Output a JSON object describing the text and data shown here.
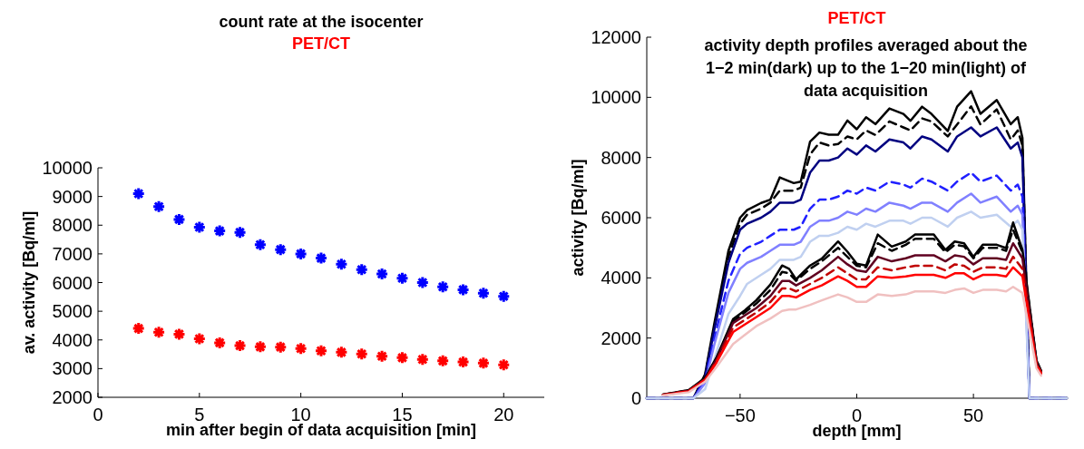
{
  "chart_data": [
    {
      "type": "scatter",
      "title": "count rate at the isocenter",
      "xlabel": "min after begin of data acquisition [min]",
      "ylabel": "av. activity [Bq/ml]",
      "x": [
        2,
        3,
        4,
        5,
        6,
        7,
        8,
        9,
        10,
        11,
        12,
        13,
        14,
        15,
        16,
        17,
        18,
        19,
        20
      ],
      "xlim": [
        0,
        22
      ],
      "xticks": [
        0,
        5,
        10,
        15,
        20
      ],
      "ylim": [
        2000,
        10000
      ],
      "yticks": [
        2000,
        3000,
        4000,
        5000,
        6000,
        7000,
        8000,
        9000,
        10000
      ],
      "marker": "cross",
      "legend": "top",
      "series": [
        {
          "color": "#0000ff",
          "values": [
            9100,
            8650,
            8200,
            7930,
            7800,
            7750,
            7320,
            7150,
            7000,
            6850,
            6640,
            6450,
            6300,
            6150,
            6000,
            5850,
            5750,
            5630,
            5520
          ]
        },
        {
          "name": "PET/CT",
          "color": "#ff0000",
          "values": [
            4400,
            4270,
            4200,
            4040,
            3900,
            3800,
            3760,
            3750,
            3700,
            3620,
            3570,
            3510,
            3430,
            3380,
            3320,
            3270,
            3230,
            3190,
            3130
          ]
        }
      ]
    },
    {
      "type": "line",
      "title": "activity depth profiles averaged about the 1−2 min(dark) up to the 1−20 min(light) of data acquisition",
      "xlabel": "depth [mm]",
      "ylabel": "activity [Bq/ml]",
      "xlim": [
        -90,
        90
      ],
      "xticks": [
        -50,
        0,
        50
      ],
      "ylim": [
        0,
        12000
      ],
      "yticks": [
        0,
        2000,
        4000,
        6000,
        8000,
        10000,
        12000
      ],
      "legend": "top",
      "series": [
        {
          "color": "#000000",
          "line_style": "solid",
          "x": [
            -90,
            -70,
            -65,
            -61,
            -55,
            -50,
            -47,
            -41,
            -37,
            -33,
            -27,
            -24,
            -20,
            -16,
            -12,
            -8,
            -4,
            0,
            4,
            8,
            14,
            20,
            23,
            28,
            32,
            39,
            43,
            49,
            53,
            60,
            66,
            69,
            71,
            74,
            90
          ],
          "values": [
            0,
            0,
            800,
            2500,
            4900,
            6000,
            6250,
            6490,
            6600,
            7340,
            7150,
            7200,
            8530,
            8830,
            8760,
            8760,
            9230,
            8940,
            9340,
            9110,
            9630,
            9450,
            9220,
            9690,
            9450,
            8880,
            9690,
            10200,
            9450,
            9910,
            9110,
            9340,
            8650,
            0,
            0
          ]
        },
        {
          "color": "#000000",
          "line_style": "dashed",
          "x": [
            -90,
            -70,
            -65,
            -61,
            -55,
            -50,
            -47,
            -41,
            -37,
            -33,
            -27,
            -24,
            -20,
            -16,
            -12,
            -8,
            -4,
            0,
            4,
            8,
            14,
            20,
            23,
            28,
            32,
            39,
            43,
            49,
            53,
            60,
            66,
            69,
            71,
            74,
            90
          ],
          "values": [
            0,
            0,
            750,
            2400,
            4700,
            5800,
            6100,
            6300,
            6500,
            6900,
            6900,
            7000,
            8100,
            8500,
            8400,
            8450,
            8700,
            8600,
            8900,
            8750,
            9200,
            9000,
            8900,
            9300,
            9200,
            8700,
            9100,
            9700,
            9100,
            9600,
            8600,
            8900,
            8400,
            0,
            0
          ]
        },
        {
          "color": "#000080",
          "line_style": "solid",
          "x": [
            -90,
            -70,
            -65,
            -61,
            -55,
            -50,
            -47,
            -41,
            -37,
            -33,
            -27,
            -24,
            -20,
            -16,
            -12,
            -8,
            -4,
            0,
            4,
            8,
            14,
            20,
            23,
            28,
            32,
            39,
            43,
            49,
            53,
            60,
            66,
            69,
            71,
            74,
            90
          ],
          "values": [
            0,
            0,
            700,
            2300,
            4500,
            5600,
            5800,
            6000,
            6200,
            6500,
            6500,
            6600,
            7500,
            7900,
            7900,
            8000,
            8300,
            8100,
            8400,
            8200,
            8600,
            8500,
            8300,
            8700,
            8600,
            8200,
            8700,
            9000,
            8700,
            9000,
            8300,
            8500,
            8000,
            0,
            0
          ]
        },
        {
          "color": "#2020ff",
          "line_style": "dashed",
          "x": [
            -90,
            -70,
            -65,
            -61,
            -55,
            -50,
            -47,
            -41,
            -37,
            -33,
            -27,
            -24,
            -20,
            -16,
            -12,
            -8,
            -4,
            0,
            4,
            8,
            14,
            20,
            23,
            28,
            32,
            39,
            43,
            49,
            53,
            60,
            66,
            69,
            71,
            74,
            90
          ],
          "values": [
            0,
            0,
            600,
            2000,
            3900,
            4800,
            5000,
            5200,
            5400,
            5600,
            5600,
            5700,
            6300,
            6600,
            6600,
            6700,
            6900,
            6800,
            7000,
            6900,
            7200,
            7100,
            7000,
            7300,
            7200,
            6900,
            7200,
            7500,
            7200,
            7400,
            6900,
            7100,
            6700,
            0,
            0
          ]
        },
        {
          "color": "#8080ff",
          "line_style": "solid",
          "x": [
            -90,
            -70,
            -65,
            -61,
            -55,
            -50,
            -47,
            -41,
            -37,
            -33,
            -27,
            -24,
            -20,
            -16,
            -12,
            -8,
            -4,
            0,
            4,
            8,
            14,
            20,
            23,
            28,
            32,
            39,
            43,
            49,
            53,
            60,
            66,
            69,
            71,
            74,
            90
          ],
          "values": [
            0,
            0,
            500,
            1800,
            3500,
            4300,
            4500,
            4700,
            4900,
            5100,
            5100,
            5200,
            5700,
            5900,
            5900,
            6000,
            6200,
            6100,
            6300,
            6200,
            6500,
            6400,
            6300,
            6500,
            6500,
            6200,
            6500,
            6800,
            6500,
            6700,
            6200,
            6400,
            6100,
            0,
            0
          ]
        },
        {
          "color": "#c0d0f0",
          "line_style": "solid",
          "x": [
            -90,
            -70,
            -65,
            -61,
            -55,
            -50,
            -47,
            -41,
            -37,
            -33,
            -27,
            -24,
            -20,
            -16,
            -12,
            -8,
            -4,
            0,
            4,
            8,
            14,
            20,
            23,
            28,
            32,
            39,
            43,
            49,
            53,
            60,
            66,
            69,
            71,
            74,
            90
          ],
          "values": [
            0,
            0,
            300,
            1300,
            2800,
            3400,
            3800,
            4100,
            4300,
            4600,
            4600,
            4700,
            5200,
            5400,
            5400,
            5500,
            5700,
            5600,
            5800,
            5700,
            5900,
            5900,
            5800,
            6000,
            6000,
            5700,
            6000,
            6200,
            6000,
            6100,
            5700,
            5900,
            5600,
            0,
            0
          ]
        },
        {
          "color": "#000000",
          "line_style": "solid",
          "x": [
            -83,
            -72,
            -65,
            -60,
            -53,
            -48,
            -43,
            -37,
            -32,
            -29,
            -26,
            -20,
            -15,
            -8,
            -4,
            0,
            4,
            9,
            15,
            21,
            25,
            33,
            38,
            42,
            46,
            50,
            54,
            60,
            64,
            67,
            71,
            77,
            79
          ],
          "values": [
            120,
            270,
            680,
            1370,
            2630,
            2920,
            3260,
            3780,
            4410,
            4300,
            3950,
            4410,
            4640,
            5210,
            4870,
            4470,
            4410,
            5440,
            5040,
            5210,
            5440,
            5440,
            4930,
            5210,
            5150,
            4700,
            5100,
            5100,
            4990,
            5840,
            4930,
            1260,
            910
          ]
        },
        {
          "color": "#000000",
          "line_style": "dashed",
          "x": [
            -83,
            -72,
            -65,
            -60,
            -53,
            -48,
            -43,
            -37,
            -32,
            -29,
            -26,
            -20,
            -15,
            -8,
            -4,
            0,
            4,
            9,
            15,
            21,
            25,
            33,
            38,
            42,
            46,
            50,
            54,
            60,
            64,
            67,
            71,
            77,
            79
          ],
          "values": [
            120,
            260,
            660,
            1350,
            2550,
            2850,
            3150,
            3600,
            4200,
            4150,
            3900,
            4300,
            4550,
            5000,
            4700,
            4400,
            4350,
            5150,
            4900,
            5100,
            5300,
            5300,
            4850,
            5100,
            5050,
            4650,
            5000,
            5000,
            4900,
            5600,
            4850,
            1250,
            900
          ]
        },
        {
          "color": "#600020",
          "line_style": "solid",
          "x": [
            -83,
            -72,
            -65,
            -60,
            -53,
            -48,
            -43,
            -37,
            -32,
            -29,
            -26,
            -20,
            -15,
            -8,
            -4,
            0,
            4,
            9,
            15,
            21,
            25,
            33,
            38,
            42,
            46,
            50,
            54,
            60,
            64,
            67,
            71,
            77,
            79
          ],
          "values": [
            110,
            250,
            640,
            1300,
            2500,
            2750,
            3000,
            3400,
            3900,
            3900,
            3750,
            4000,
            4250,
            4700,
            4450,
            4250,
            4200,
            4700,
            4550,
            4650,
            4750,
            4750,
            4550,
            4750,
            4700,
            4450,
            4650,
            4650,
            4600,
            5150,
            4650,
            1200,
            880
          ]
        },
        {
          "color": "#c00000",
          "line_style": "dashed",
          "x": [
            -83,
            -72,
            -65,
            -60,
            -53,
            -48,
            -43,
            -37,
            -32,
            -29,
            -26,
            -20,
            -15,
            -8,
            -4,
            0,
            4,
            9,
            15,
            21,
            25,
            33,
            38,
            42,
            46,
            50,
            54,
            60,
            64,
            67,
            71,
            77,
            79
          ],
          "values": [
            110,
            240,
            620,
            1250,
            2350,
            2600,
            2850,
            3200,
            3650,
            3650,
            3550,
            3800,
            4000,
            4350,
            4150,
            3950,
            3950,
            4350,
            4250,
            4350,
            4400,
            4400,
            4250,
            4450,
            4400,
            4200,
            4350,
            4350,
            4300,
            4700,
            4300,
            1150,
            850
          ]
        },
        {
          "name": "PET/CT",
          "color": "#ff0000",
          "line_style": "solid",
          "x": [
            -83,
            -72,
            -65,
            -60,
            -53,
            -48,
            -43,
            -37,
            -32,
            -29,
            -26,
            -20,
            -15,
            -8,
            -4,
            0,
            4,
            9,
            15,
            21,
            25,
            33,
            38,
            42,
            46,
            50,
            54,
            60,
            64,
            67,
            71,
            77,
            79
          ],
          "values": [
            100,
            230,
            600,
            1200,
            2200,
            2450,
            2700,
            3000,
            3400,
            3400,
            3350,
            3600,
            3750,
            4050,
            3900,
            3700,
            3700,
            4050,
            4000,
            4050,
            4100,
            4100,
            4000,
            4150,
            4150,
            3950,
            4100,
            4100,
            4050,
            4350,
            4050,
            1100,
            820
          ]
        },
        {
          "color": "#f0c0c0",
          "line_style": "solid",
          "x": [
            -83,
            -72,
            -65,
            -60,
            -53,
            -48,
            -43,
            -37,
            -32,
            -29,
            -26,
            -20,
            -15,
            -8,
            -4,
            0,
            4,
            9,
            15,
            21,
            25,
            33,
            38,
            42,
            46,
            50,
            54,
            60,
            64,
            67,
            71,
            77,
            79
          ],
          "values": [
            90,
            200,
            550,
            1050,
            1800,
            2100,
            2400,
            2650,
            2900,
            2950,
            2950,
            3100,
            3250,
            3450,
            3350,
            3200,
            3200,
            3450,
            3400,
            3450,
            3550,
            3550,
            3500,
            3600,
            3650,
            3500,
            3600,
            3600,
            3550,
            3700,
            3500,
            1000,
            750
          ]
        }
      ]
    }
  ]
}
